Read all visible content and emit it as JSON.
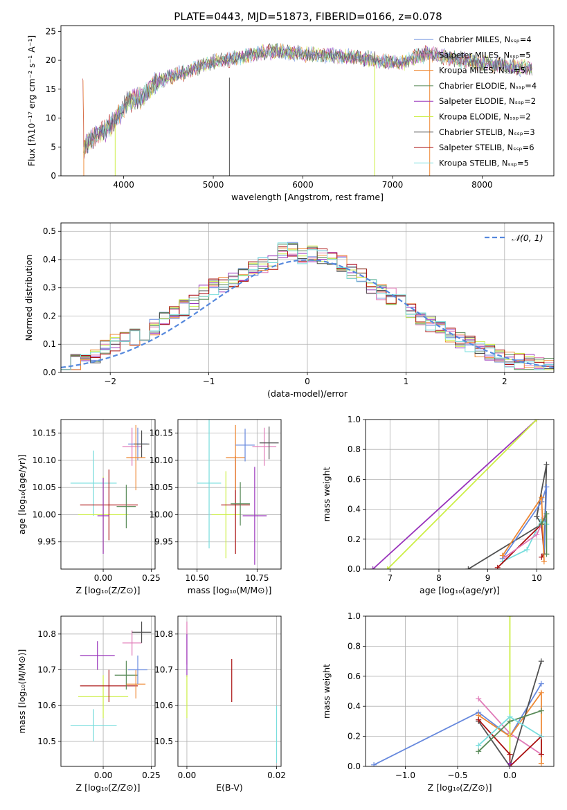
{
  "figure_title": "PLATE=0443, MJD=51873, FIBERID=0166, z=0.078",
  "colors": {
    "chabrier_miles": "#6688dd",
    "salpeter_miles": "#e07ab8",
    "kroupa_miles": "#ee8833",
    "chabrier_elodie": "#558855",
    "salpeter_elodie": "#9933bb",
    "kroupa_elodie": "#ccee44",
    "chabrier_stelib": "#505050",
    "salpeter_stelib": "#aa1111",
    "kroupa_stelib": "#77dddd",
    "normal": "#5588dd"
  },
  "chart_data": [
    {
      "type": "line",
      "title": "PLATE=0443, MJD=51873, FIBERID=0166, z=0.078",
      "xlabel": "wavelength [Angstrom, rest frame]",
      "ylabel": "Flux [fλ10⁻¹⁷ erg cm⁻² s⁻¹ A⁻¹]",
      "xlim": [
        3300,
        8800
      ],
      "ylim": [
        0,
        26
      ],
      "xticks": [
        "4000",
        "5000",
        "6000",
        "7000",
        "8000"
      ],
      "yticks": [
        "0",
        "5",
        "10",
        "15",
        "20",
        "25"
      ],
      "legend_position": "top-right",
      "series": [
        {
          "name": "Chabrier MILES, Nₛₛₚ=4",
          "key": "chabrier_miles"
        },
        {
          "name": "Salpeter MILES, Nₛₛₚ=5",
          "key": "salpeter_miles"
        },
        {
          "name": "Kroupa MILES, Nₛₛₚ=5",
          "key": "kroupa_miles"
        },
        {
          "name": "Chabrier ELODIE, Nₛₛₚ=4",
          "key": "chabrier_elodie"
        },
        {
          "name": "Salpeter ELODIE, Nₛₛₚ=2",
          "key": "salpeter_elodie"
        },
        {
          "name": "Kroupa ELODIE, Nₛₛₚ=2",
          "key": "kroupa_elodie"
        },
        {
          "name": "Chabrier STELIB, Nₛₛₚ=3",
          "key": "chabrier_stelib"
        },
        {
          "name": "Salpeter STELIB, Nₛₛₚ=6",
          "key": "salpeter_stelib"
        },
        {
          "name": "Kroupa STELIB, Nₛₛₚ=5",
          "key": "kroupa_stelib"
        }
      ],
      "continuum": [
        [
          3550,
          5
        ],
        [
          3650,
          6.5
        ],
        [
          3800,
          8
        ],
        [
          3950,
          10.5
        ],
        [
          4050,
          13
        ],
        [
          4200,
          13.5
        ],
        [
          4350,
          16
        ],
        [
          4500,
          17
        ],
        [
          4700,
          18
        ],
        [
          4900,
          19.2
        ],
        [
          5100,
          20
        ],
        [
          5300,
          20.5
        ],
        [
          5500,
          21.3
        ],
        [
          5700,
          21.5
        ],
        [
          5900,
          21.3
        ],
        [
          6100,
          21
        ],
        [
          6300,
          20.8
        ],
        [
          6500,
          20.6
        ],
        [
          6700,
          20.3
        ],
        [
          6900,
          19.8
        ],
        [
          7100,
          19.4
        ],
        [
          7250,
          20.5
        ],
        [
          7400,
          21.2
        ],
        [
          7600,
          20.5
        ],
        [
          7800,
          20
        ],
        [
          8000,
          19.5
        ],
        [
          8200,
          19.2
        ],
        [
          8400,
          18.8
        ],
        [
          8550,
          18.5
        ]
      ]
    },
    {
      "type": "line",
      "xlabel": "(data-model)/error",
      "ylabel": "Normed distribution",
      "xlim": [
        -2.5,
        2.5
      ],
      "ylim": [
        0,
        0.53
      ],
      "xticks": [
        "−2",
        "−1",
        "0",
        "1",
        "2"
      ],
      "yticks": [
        "0.0",
        "0.1",
        "0.2",
        "0.3",
        "0.4",
        "0.5"
      ],
      "legend": "𝒩(0, 1)",
      "legend_position": "top-right",
      "hist_base": [
        0.03,
        0.035,
        0.045,
        0.06,
        0.085,
        0.105,
        0.115,
        0.125,
        0.14,
        0.16,
        0.19,
        0.215,
        0.23,
        0.25,
        0.28,
        0.305,
        0.31,
        0.33,
        0.345,
        0.37,
        0.38,
        0.39,
        0.43,
        0.44,
        0.415,
        0.42,
        0.41,
        0.4,
        0.385,
        0.36,
        0.34,
        0.31,
        0.285,
        0.27,
        0.25,
        0.215,
        0.19,
        0.17,
        0.155,
        0.135,
        0.115,
        0.1,
        0.085,
        0.07,
        0.055,
        0.045,
        0.04,
        0.035,
        0.028,
        0.025
      ]
    },
    {
      "type": "scatter",
      "xlabel": "Z [log₁₀(Z/Z⊙)]",
      "ylabel": "age  [log₁₀(age/yr)]",
      "xlim": [
        -0.22,
        0.27
      ],
      "ylim": [
        9.9,
        10.175
      ],
      "xticks": [
        "0.00",
        "0.25"
      ],
      "yticks": [
        "9.95",
        "10.00",
        "10.05",
        "10.10",
        "10.15"
      ],
      "points": [
        {
          "key": "kroupa_stelib",
          "x": -0.05,
          "y": 10.058,
          "xerr": 0.12,
          "yerr": 0.06
        },
        {
          "key": "kroupa_elodie",
          "x": 0.0,
          "y": 10.0,
          "xerr": 0.13,
          "yerr": 0.07
        },
        {
          "key": "salpeter_stelib",
          "x": 0.03,
          "y": 10.018,
          "xerr": 0.15,
          "yerr": 0.065
        },
        {
          "key": "chabrier_elodie",
          "x": 0.12,
          "y": 10.015,
          "xerr": 0.05,
          "yerr": 0.04
        },
        {
          "key": "salpeter_elodie",
          "x": 0.0,
          "y": 9.998,
          "xerr": 0.03,
          "yerr": 0.07
        },
        {
          "key": "salpeter_miles",
          "x": 0.15,
          "y": 10.125,
          "xerr": 0.05,
          "yerr": 0.035
        },
        {
          "key": "chabrier_miles",
          "x": 0.18,
          "y": 10.13,
          "xerr": 0.05,
          "yerr": 0.03
        },
        {
          "key": "chabrier_stelib",
          "x": 0.2,
          "y": 10.13,
          "xerr": 0.04,
          "yerr": 0.025
        },
        {
          "key": "kroupa_miles",
          "x": 0.17,
          "y": 10.105,
          "xerr": 0.05,
          "yerr": 0.06
        }
      ]
    },
    {
      "type": "scatter",
      "xlabel": "mass [log₁₀(M/M⊙)]",
      "xlim": [
        10.42,
        10.85
      ],
      "ylim": [
        9.9,
        10.175
      ],
      "xticks": [
        "10.50",
        "10.75"
      ],
      "yticks": [
        "9.95",
        "10.00",
        "10.05",
        "10.10",
        "10.15"
      ],
      "points": [
        {
          "key": "kroupa_stelib",
          "x": 10.55,
          "y": 10.058,
          "xerr": 0.05,
          "yerr": 0.12
        },
        {
          "key": "kroupa_elodie",
          "x": 10.62,
          "y": 10.0,
          "xerr": 0.06,
          "yerr": 0.08
        },
        {
          "key": "salpeter_stelib",
          "x": 10.66,
          "y": 10.018,
          "xerr": 0.06,
          "yerr": 0.09
        },
        {
          "key": "chabrier_elodie",
          "x": 10.68,
          "y": 10.02,
          "xerr": 0.04,
          "yerr": 0.04
        },
        {
          "key": "salpeter_elodie",
          "x": 10.74,
          "y": 9.998,
          "xerr": 0.05,
          "yerr": 0.09
        },
        {
          "key": "kroupa_miles",
          "x": 10.66,
          "y": 10.105,
          "xerr": 0.04,
          "yerr": 0.06
        },
        {
          "key": "chabrier_miles",
          "x": 10.7,
          "y": 10.128,
          "xerr": 0.04,
          "yerr": 0.03
        },
        {
          "key": "salpeter_miles",
          "x": 10.78,
          "y": 10.125,
          "xerr": 0.05,
          "yerr": 0.035
        },
        {
          "key": "chabrier_stelib",
          "x": 10.8,
          "y": 10.132,
          "xerr": 0.04,
          "yerr": 0.03
        }
      ]
    },
    {
      "type": "line",
      "xlabel": "age  [log₁₀(age/yr)]",
      "ylabel": "mass weight",
      "xlim": [
        6.5,
        10.35
      ],
      "ylim": [
        0,
        1
      ],
      "xticks": [
        "7",
        "8",
        "9",
        "10"
      ],
      "yticks": [
        "0.0",
        "0.2",
        "0.4",
        "0.6",
        "0.8",
        "1.0"
      ],
      "series": [
        {
          "key": "salpeter_elodie",
          "points": [
            [
              6.65,
              0
            ],
            [
              10.0,
              1.0
            ]
          ]
        },
        {
          "key": "kroupa_elodie",
          "points": [
            [
              6.95,
              0
            ],
            [
              10.0,
              1.0
            ]
          ]
        },
        {
          "key": "chabrier_stelib",
          "points": [
            [
              8.6,
              0
            ],
            [
              10.1,
              0.3
            ],
            [
              10.0,
              0.35
            ],
            [
              10.2,
              0.7
            ],
            [
              10.15,
              0.1
            ]
          ]
        },
        {
          "key": "chabrier_miles",
          "points": [
            [
              9.3,
              0.07
            ],
            [
              10.1,
              0.45
            ],
            [
              10.2,
              0.55
            ],
            [
              10.15,
              0.1
            ]
          ]
        },
        {
          "key": "kroupa_stelib",
          "points": [
            [
              9.3,
              0.05
            ],
            [
              9.8,
              0.13
            ],
            [
              10.1,
              0.33
            ],
            [
              10.2,
              0.3
            ]
          ]
        },
        {
          "key": "salpeter_stelib",
          "points": [
            [
              9.2,
              0.01
            ],
            [
              10.1,
              0.3
            ],
            [
              10.15,
              0.1
            ],
            [
              10.1,
              0.08
            ]
          ]
        },
        {
          "key": "salpeter_miles",
          "points": [
            [
              9.35,
              0.08
            ],
            [
              10.0,
              0.23
            ],
            [
              10.15,
              0.34
            ]
          ]
        },
        {
          "key": "kroupa_miles",
          "points": [
            [
              9.3,
              0.09
            ],
            [
              10.1,
              0.48
            ],
            [
              10.15,
              0.05
            ]
          ]
        },
        {
          "key": "chabrier_elodie",
          "points": [
            [
              10.1,
              0.3
            ],
            [
              10.2,
              0.37
            ],
            [
              10.2,
              0.1
            ]
          ]
        }
      ]
    },
    {
      "type": "scatter",
      "xlabel": "Z [log₁₀(Z/Z⊙)]",
      "ylabel": "mass [log₁₀(M/M⊙)]",
      "xlim": [
        -0.22,
        0.27
      ],
      "ylim": [
        10.43,
        10.85
      ],
      "xticks": [
        "0.00",
        "0.25"
      ],
      "yticks": [
        "10.5",
        "10.6",
        "10.7",
        "10.8"
      ],
      "points": [
        {
          "key": "kroupa_stelib",
          "x": -0.05,
          "y": 10.545,
          "xerr": 0.12,
          "yerr": 0.045
        },
        {
          "key": "kroupa_elodie",
          "x": 0.0,
          "y": 10.625,
          "xerr": 0.13,
          "yerr": 0.06
        },
        {
          "key": "salpeter_stelib",
          "x": 0.03,
          "y": 10.655,
          "xerr": 0.15,
          "yerr": 0.045
        },
        {
          "key": "salpeter_elodie",
          "x": -0.03,
          "y": 10.74,
          "xerr": 0.09,
          "yerr": 0.04
        },
        {
          "key": "chabrier_elodie",
          "x": 0.12,
          "y": 10.685,
          "xerr": 0.06,
          "yerr": 0.04
        },
        {
          "key": "kroupa_miles",
          "x": 0.17,
          "y": 10.66,
          "xerr": 0.05,
          "yerr": 0.04
        },
        {
          "key": "chabrier_miles",
          "x": 0.18,
          "y": 10.7,
          "xerr": 0.05,
          "yerr": 0.04
        },
        {
          "key": "salpeter_miles",
          "x": 0.15,
          "y": 10.775,
          "xerr": 0.05,
          "yerr": 0.035
        },
        {
          "key": "chabrier_stelib",
          "x": 0.2,
          "y": 10.805,
          "xerr": 0.05,
          "yerr": 0.03
        }
      ]
    },
    {
      "type": "scatter",
      "xlabel": "E(B-V)",
      "xlim": [
        -0.002,
        0.021
      ],
      "ylim": [
        10.43,
        10.85
      ],
      "xticks": [
        "0.00",
        "0.02"
      ],
      "yticks": [
        "10.5",
        "10.6",
        "10.7",
        "10.8"
      ],
      "points": [
        {
          "key": "salpeter_miles",
          "x": 0.0,
          "y": 10.775,
          "yerr": 0.06
        },
        {
          "key": "salpeter_elodie",
          "x": 0.0,
          "y": 10.74,
          "yerr": 0.06
        },
        {
          "key": "kroupa_elodie",
          "x": 0.0,
          "y": 10.625,
          "yerr": 0.06
        },
        {
          "key": "salpeter_stelib",
          "x": 0.01,
          "y": 10.67,
          "yerr": 0.06
        },
        {
          "key": "kroupa_stelib",
          "x": 0.02,
          "y": 10.52,
          "yerr": 0.08
        }
      ]
    },
    {
      "type": "line",
      "xlabel": "Z [log₁₀(Z/Z⊙)]",
      "ylabel": "mass weight",
      "xlim": [
        -1.38,
        0.42
      ],
      "ylim": [
        0,
        1
      ],
      "xticks": [
        "−1.0",
        "−0.5",
        "0.0"
      ],
      "yticks": [
        "0.0",
        "0.2",
        "0.4",
        "0.6",
        "0.8",
        "1.0"
      ],
      "series": [
        {
          "key": "chabrier_miles",
          "points": [
            [
              -1.3,
              0.01
            ],
            [
              -0.3,
              0.36
            ],
            [
              0.0,
              0.2
            ],
            [
              0.3,
              0.55
            ]
          ]
        },
        {
          "key": "salpeter_miles",
          "points": [
            [
              -0.3,
              0.45
            ],
            [
              0.0,
              0.22
            ],
            [
              0.3,
              0.08
            ]
          ]
        },
        {
          "key": "kroupa_miles",
          "points": [
            [
              -0.3,
              0.34
            ],
            [
              0.0,
              0.2
            ],
            [
              0.3,
              0.49
            ],
            [
              0.3,
              0.02
            ]
          ]
        },
        {
          "key": "kroupa_elodie",
          "points": [
            [
              0.0,
              0.0
            ],
            [
              0.0,
              1.0
            ]
          ]
        },
        {
          "key": "chabrier_stelib",
          "points": [
            [
              -0.3,
              0.3
            ],
            [
              0.0,
              0.0
            ],
            [
              0.3,
              0.7
            ]
          ]
        },
        {
          "key": "salpeter_stelib",
          "points": [
            [
              -0.3,
              0.31
            ],
            [
              0.0,
              0.08
            ],
            [
              0.0,
              0.0
            ],
            [
              0.3,
              0.2
            ],
            [
              0.3,
              0.08
            ]
          ]
        },
        {
          "key": "chabrier_elodie",
          "points": [
            [
              -0.3,
              0.1
            ],
            [
              0.0,
              0.3
            ],
            [
              0.3,
              0.37
            ]
          ]
        },
        {
          "key": "kroupa_stelib",
          "points": [
            [
              -0.3,
              0.14
            ],
            [
              0.0,
              0.33
            ],
            [
              0.3,
              0.2
            ]
          ]
        },
        {
          "key": "salpeter_elodie",
          "points": [
            [
              0.0,
              0.0
            ],
            [
              0.0,
              0.02
            ]
          ]
        }
      ]
    }
  ]
}
